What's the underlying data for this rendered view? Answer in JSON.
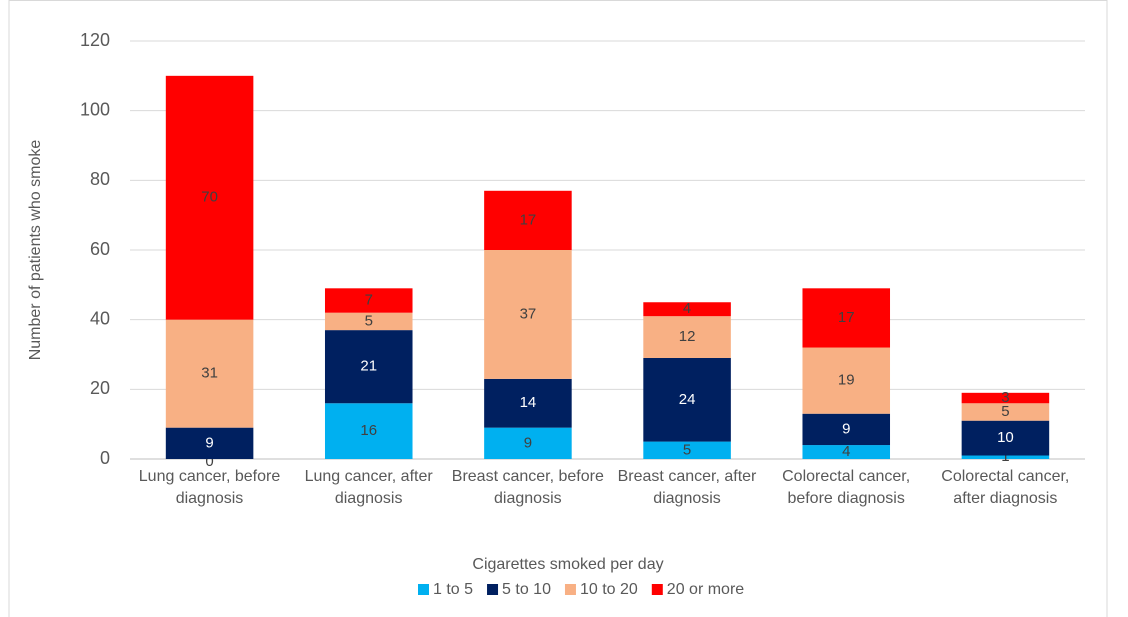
{
  "chart_data": {
    "type": "stacked-bar",
    "categories": [
      "Lung cancer, before diagnosis",
      "Lung cancer, after diagnosis",
      "Breast cancer, before diagnosis",
      "Breast cancer, after diagnosis",
      "Colorectal cancer, before diagnosis",
      "Colorectal cancer, after diagnosis"
    ],
    "series": [
      {
        "name": "1 to 5",
        "color": "#00b0f0",
        "values": [
          0,
          16,
          9,
          5,
          4,
          1
        ]
      },
      {
        "name": "5 to 10",
        "color": "#002060",
        "values": [
          9,
          21,
          14,
          24,
          9,
          10
        ]
      },
      {
        "name": "10 to 20",
        "color": "#f8b084",
        "values": [
          31,
          5,
          37,
          12,
          19,
          5
        ]
      },
      {
        "name": "20 or more",
        "color": "#ff0000",
        "values": [
          70,
          7,
          17,
          4,
          17,
          3
        ]
      }
    ],
    "y_label": "Number of patients who smoke",
    "x_label": "Cigarettes smoked per day",
    "ylim": [
      0,
      120
    ],
    "yticks": [
      0,
      20,
      40,
      60,
      80,
      100,
      120
    ],
    "grid": true,
    "legend": "bottom"
  }
}
